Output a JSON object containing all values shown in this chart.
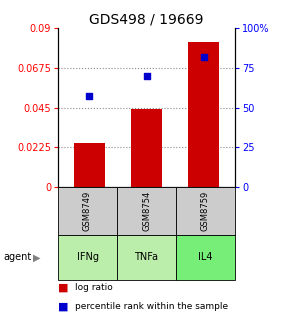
{
  "title": "GDS498 / 19669",
  "samples": [
    "GSM8749",
    "GSM8754",
    "GSM8759"
  ],
  "agents": [
    "IFNg",
    "TNFa",
    "IL4"
  ],
  "log_ratio": [
    0.025,
    0.044,
    0.082
  ],
  "percentile_rank": [
    57,
    70,
    82
  ],
  "ylim_left": [
    0,
    0.09
  ],
  "ylim_right": [
    0,
    100
  ],
  "yticks_left": [
    0,
    0.0225,
    0.045,
    0.0675,
    0.09
  ],
  "yticks_right": [
    0,
    25,
    50,
    75,
    100
  ],
  "ytick_labels_left": [
    "0",
    "0.0225",
    "0.045",
    "0.0675",
    "0.09"
  ],
  "ytick_labels_right": [
    "0",
    "25",
    "50",
    "75",
    "100%"
  ],
  "bar_color": "#cc0000",
  "dot_color": "#0000cc",
  "sample_box_color": "#cccccc",
  "agent_box_color_light": "#bbeeaa",
  "agent_box_color_strong": "#77ee77",
  "title_fontsize": 10,
  "bar_width": 0.55,
  "grid_color": "#888888"
}
